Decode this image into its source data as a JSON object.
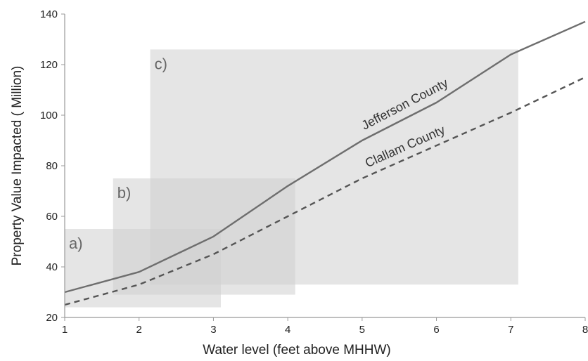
{
  "chart_data": {
    "type": "line",
    "title": "",
    "xlabel": "Water level (feet above MHHW)",
    "ylabel": "Property Value Impacted ( Million)",
    "xlim": [
      1,
      8
    ],
    "ylim": [
      20,
      140
    ],
    "xticks": [
      1,
      2,
      3,
      4,
      5,
      6,
      7,
      8
    ],
    "yticks": [
      20,
      40,
      60,
      80,
      100,
      120,
      140
    ],
    "grid": false,
    "series": [
      {
        "name": "Jefferson County",
        "style": "solid",
        "color": "#6e6e6e",
        "x": [
          1,
          2,
          3,
          4,
          5,
          6,
          7,
          8
        ],
        "y": [
          30,
          38,
          52,
          72,
          90,
          105,
          124,
          137
        ]
      },
      {
        "name": "Clallam County",
        "style": "dashed",
        "color": "#555555",
        "x": [
          1,
          2,
          3,
          4,
          5,
          6,
          7,
          8
        ],
        "y": [
          25,
          33,
          45,
          60,
          75,
          88,
          101,
          115
        ]
      }
    ],
    "regions": [
      {
        "label": "a)",
        "x": [
          1.0,
          3.1
        ],
        "y": [
          24,
          55
        ],
        "color": "#d0d0d0"
      },
      {
        "label": "b)",
        "x": [
          1.65,
          4.1
        ],
        "y": [
          29,
          75
        ],
        "color": "#d0d0d0"
      },
      {
        "label": "c)",
        "x": [
          2.15,
          7.1
        ],
        "y": [
          33,
          126
        ],
        "color": "#d0d0d0"
      }
    ]
  }
}
